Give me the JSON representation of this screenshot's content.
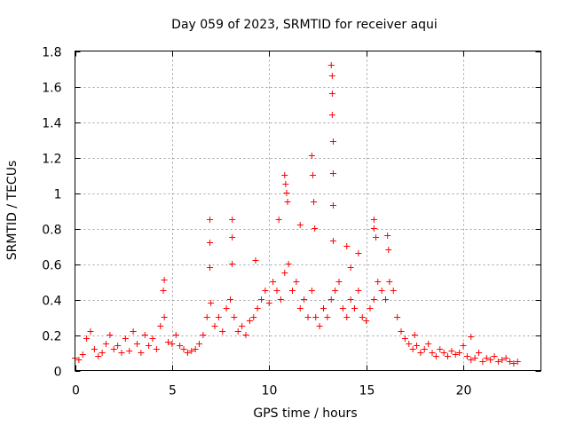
{
  "chart_data": {
    "type": "scatter",
    "title": "Day 059 of 2023, SRMTID for receiver aqui",
    "xlabel": "GPS time / hours",
    "ylabel": "SRMTID / TECUs",
    "xlim": [
      0,
      24
    ],
    "ylim": [
      0,
      1.8
    ],
    "xticks": [
      0,
      5,
      10,
      15,
      20
    ],
    "yticks": [
      0,
      0.2,
      0.4,
      0.6,
      0.8,
      1,
      1.2,
      1.4,
      1.6,
      1.8
    ],
    "xtick_labels": [
      "0",
      "5",
      "10",
      "15",
      "20"
    ],
    "ytick_labels": [
      "0",
      "0.2",
      "0.4",
      "0.6",
      "0.8",
      "1",
      "1.2",
      "1.4",
      "1.6",
      "1.8"
    ],
    "grid": true,
    "marker": "+",
    "color": "#ff0000",
    "series": [
      {
        "name": "SRMTID",
        "x": [
          0.0,
          0.2,
          0.4,
          0.6,
          0.8,
          1.0,
          1.2,
          1.4,
          1.6,
          1.8,
          2.0,
          2.2,
          2.4,
          2.6,
          2.8,
          3.0,
          3.2,
          3.4,
          3.6,
          3.8,
          4.0,
          4.2,
          4.4,
          4.6,
          4.8,
          5.0,
          5.2,
          5.4,
          5.6,
          5.8,
          6.0,
          6.2,
          6.4,
          6.6,
          6.8,
          7.0,
          7.2,
          7.4,
          7.6,
          7.8,
          8.0,
          8.2,
          8.4,
          8.6,
          8.8,
          9.0,
          9.2,
          9.4,
          9.6,
          9.8,
          10.0,
          10.2,
          10.4,
          10.6,
          10.8,
          11.0,
          11.2,
          11.4,
          11.6,
          11.8,
          12.0,
          12.2,
          12.4,
          12.6,
          12.8,
          13.0,
          13.2,
          13.4,
          13.6,
          13.8,
          14.0,
          14.2,
          14.4,
          14.6,
          14.8,
          15.0,
          15.2,
          15.4,
          15.6,
          15.8,
          16.0,
          16.2,
          16.4,
          16.6,
          16.8,
          17.0,
          17.2,
          17.4,
          17.6,
          17.8,
          18.0,
          18.2,
          18.4,
          18.6,
          18.8,
          19.0,
          19.2,
          19.4,
          19.6,
          19.8,
          20.0,
          20.2,
          20.4,
          20.6,
          20.8,
          21.0,
          21.2,
          21.4,
          21.6,
          21.8,
          22.0,
          22.2,
          22.4,
          22.6,
          22.8,
          6.95,
          6.95,
          6.95,
          8.1,
          8.1,
          8.1,
          10.8,
          10.85,
          10.9,
          10.95,
          10.5,
          11.6,
          12.2,
          12.25,
          12.3,
          12.35,
          13.2,
          13.25,
          13.25,
          13.25,
          13.3,
          13.3,
          13.3,
          13.3,
          15.4,
          15.4,
          15.5,
          16.1,
          16.15,
          4.6,
          4.55,
          14.0,
          14.2,
          14.6,
          9.3,
          17.5,
          20.4
        ],
        "y": [
          0.07,
          0.06,
          0.09,
          0.18,
          0.22,
          0.12,
          0.08,
          0.1,
          0.15,
          0.2,
          0.12,
          0.14,
          0.1,
          0.18,
          0.11,
          0.22,
          0.15,
          0.1,
          0.2,
          0.14,
          0.18,
          0.12,
          0.25,
          0.3,
          0.16,
          0.15,
          0.2,
          0.14,
          0.12,
          0.1,
          0.11,
          0.12,
          0.15,
          0.2,
          0.3,
          0.38,
          0.25,
          0.3,
          0.22,
          0.35,
          0.4,
          0.3,
          0.22,
          0.25,
          0.2,
          0.28,
          0.3,
          0.35,
          0.4,
          0.45,
          0.38,
          0.5,
          0.45,
          0.4,
          0.55,
          0.6,
          0.45,
          0.5,
          0.35,
          0.4,
          0.3,
          0.45,
          0.3,
          0.25,
          0.35,
          0.3,
          0.4,
          0.45,
          0.5,
          0.35,
          0.3,
          0.4,
          0.35,
          0.45,
          0.3,
          0.28,
          0.35,
          0.4,
          0.5,
          0.45,
          0.4,
          0.5,
          0.45,
          0.3,
          0.22,
          0.18,
          0.15,
          0.12,
          0.14,
          0.1,
          0.12,
          0.15,
          0.1,
          0.08,
          0.12,
          0.1,
          0.08,
          0.11,
          0.09,
          0.1,
          0.14,
          0.08,
          0.06,
          0.07,
          0.1,
          0.05,
          0.07,
          0.06,
          0.08,
          0.05,
          0.06,
          0.07,
          0.05,
          0.04,
          0.05,
          0.85,
          0.72,
          0.58,
          0.85,
          0.75,
          0.6,
          1.1,
          1.05,
          1.0,
          0.95,
          0.85,
          0.82,
          1.21,
          1.1,
          0.95,
          0.8,
          1.72,
          1.66,
          1.56,
          1.44,
          1.29,
          1.11,
          0.93,
          0.73,
          0.85,
          0.8,
          0.75,
          0.76,
          0.68,
          0.51,
          0.45,
          0.7,
          0.58,
          0.66,
          0.62,
          0.2,
          0.19
        ]
      }
    ]
  }
}
